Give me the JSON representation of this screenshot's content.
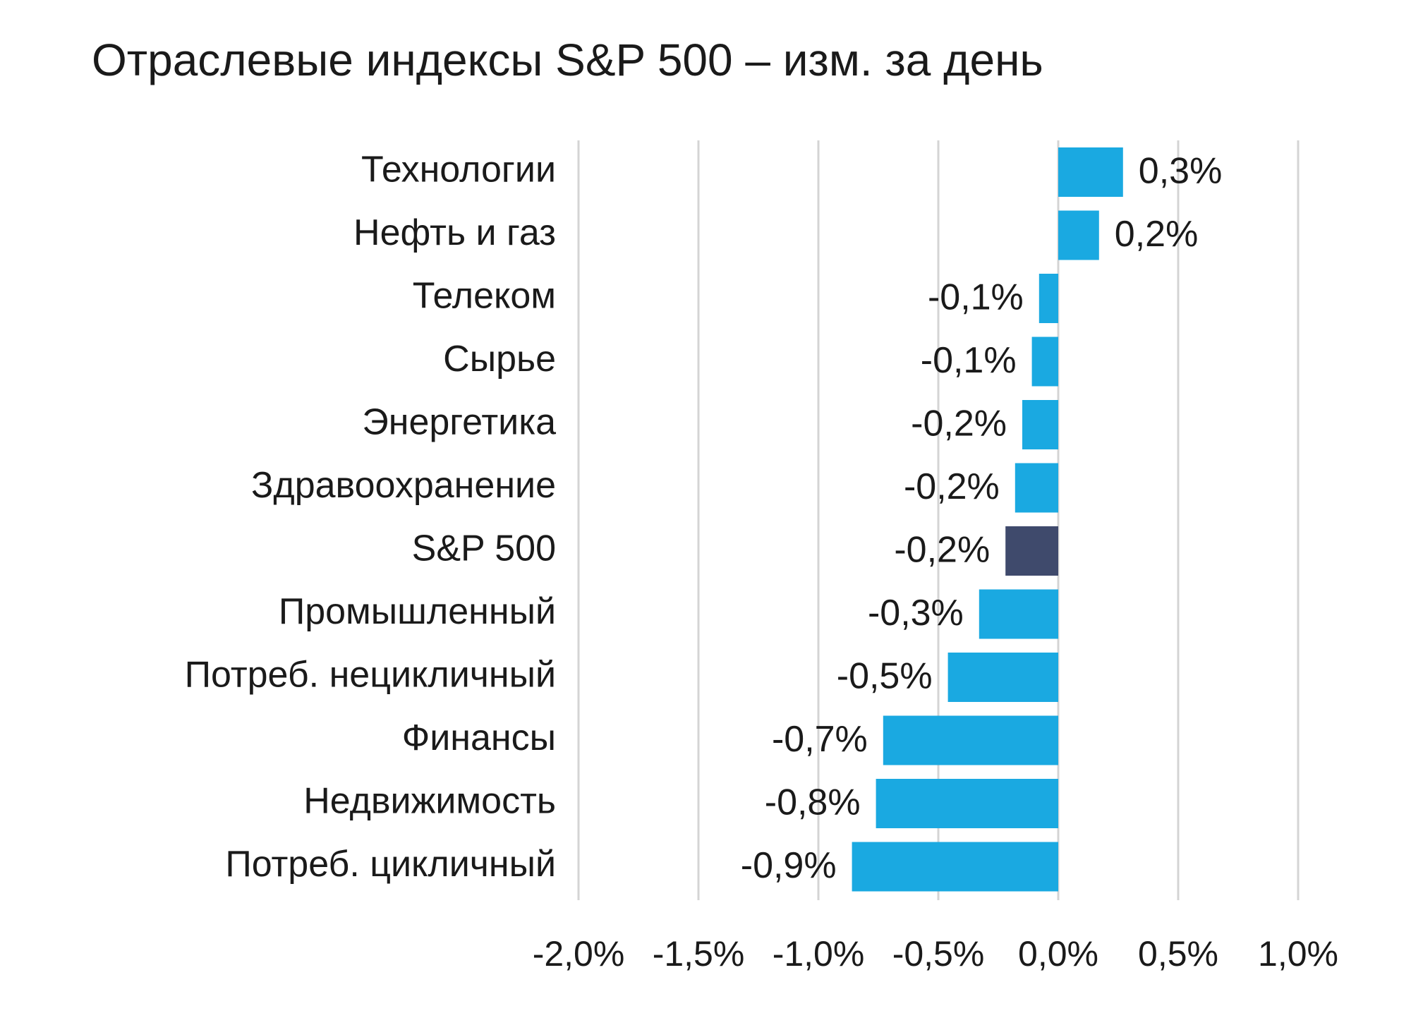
{
  "chart_data": {
    "type": "hbar",
    "title": "Отраслевые индексы S&P 500 – изм. за день",
    "categories": [
      "Технологии",
      "Нефть и газ",
      "Телеком",
      "Сырье",
      "Энергетика",
      "Здравоохранение",
      "S&P 500",
      "Промышленный",
      "Потреб. нецикличный",
      "Финансы",
      "Недвижимость",
      "Потреб. цикличный"
    ],
    "values": [
      0.27,
      0.17,
      -0.08,
      -0.11,
      -0.15,
      -0.18,
      -0.22,
      -0.33,
      -0.46,
      -0.73,
      -0.76,
      -0.86
    ],
    "value_labels": [
      "0,3%",
      "0,2%",
      "-0,1%",
      "-0,1%",
      "-0,2%",
      "-0,2%",
      "-0,2%",
      "-0,3%",
      "-0,5%",
      "-0,7%",
      "-0,8%",
      "-0,9%"
    ],
    "colors": [
      "#1aa9e1",
      "#1aa9e1",
      "#1aa9e1",
      "#1aa9e1",
      "#1aa9e1",
      "#1aa9e1",
      "#3f4a6c",
      "#1aa9e1",
      "#1aa9e1",
      "#1aa9e1",
      "#1aa9e1",
      "#1aa9e1"
    ],
    "xlim": [
      -2,
      1
    ],
    "xticks": [
      {
        "value": -2,
        "label": "-2,0%"
      },
      {
        "value": -1.5,
        "label": "-1,5%"
      },
      {
        "value": -1,
        "label": "-1,0%"
      },
      {
        "value": -0.5,
        "label": "-0,5%"
      },
      {
        "value": 0,
        "label": "0,0%"
      },
      {
        "value": 0.5,
        "label": "0,5%"
      },
      {
        "value": 1,
        "label": "1,0%"
      }
    ],
    "grid": true
  }
}
